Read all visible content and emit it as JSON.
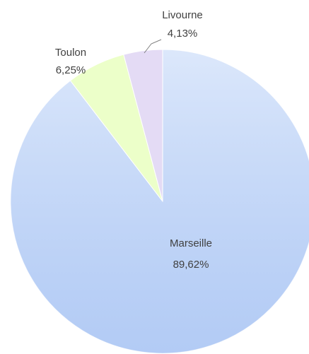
{
  "chart_data": {
    "type": "pie",
    "categories": [
      "Marseille",
      "Toulon",
      "Livourne"
    ],
    "values": [
      89.62,
      6.25,
      4.13
    ],
    "value_labels": [
      "89,62%",
      "6,25%",
      "4,13%"
    ],
    "colors": [
      "#c9dbf9",
      "#ecffc9",
      "#e4dbf5"
    ]
  }
}
